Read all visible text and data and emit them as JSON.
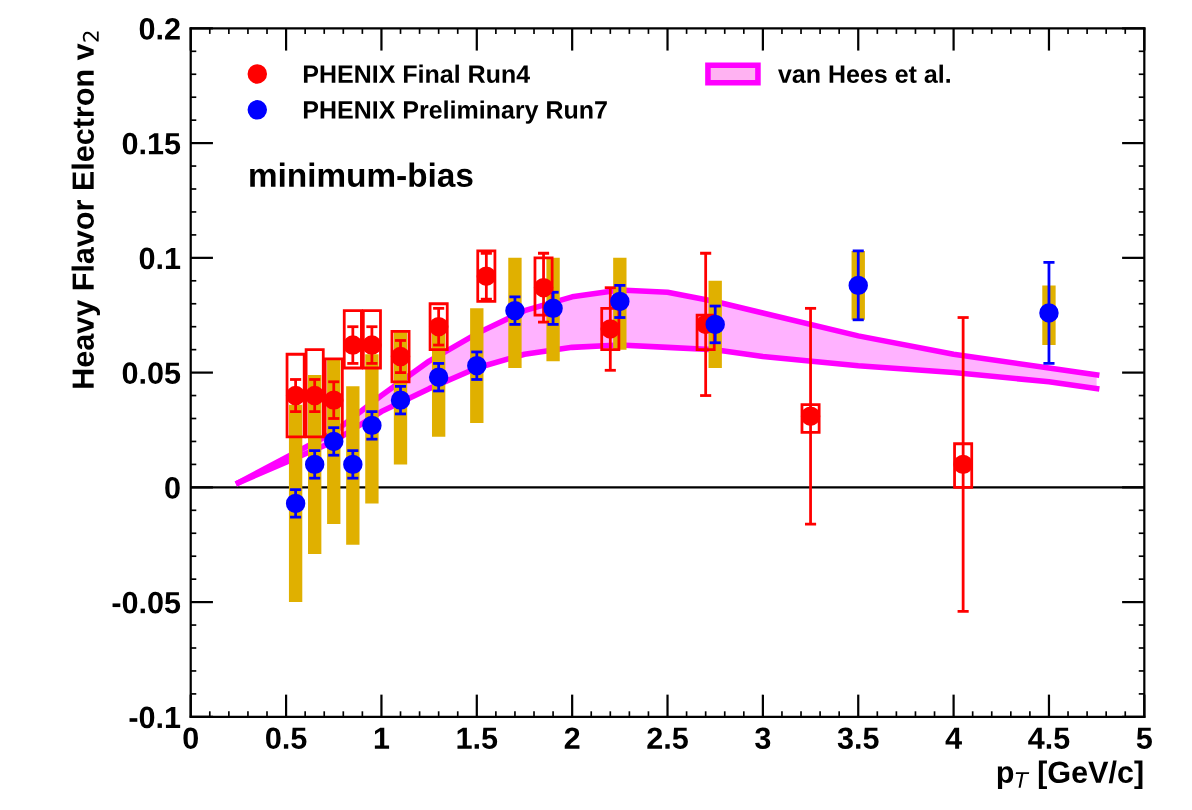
{
  "chart_data": {
    "type": "scatter",
    "xlabel": "p$_{T}$ [GeV/c]",
    "ylabel": "Heavy Flavor Electron v$_{2}$",
    "xlim": [
      0,
      5
    ],
    "ylim": [
      -0.1,
      0.2
    ],
    "xticks": [
      0,
      0.5,
      1,
      1.5,
      2,
      2.5,
      3,
      3.5,
      4,
      4.5,
      5
    ],
    "yticks": [
      {
        "value": -0.1,
        "label": "-0.1"
      },
      {
        "value": -0.05,
        "label": "-0.05"
      },
      0,
      0.05,
      0.1,
      0.15,
      0.2
    ],
    "grid": false,
    "legend": "top left",
    "annotations": [
      "minimum-bias"
    ],
    "ref_lines": [
      {
        "axis": "y",
        "value": 0,
        "color": "#000000"
      }
    ],
    "series": [
      {
        "type": "line",
        "color": "#ff00ff",
        "x": [
          0.25,
          0.5,
          0.75,
          1.0,
          1.25,
          1.5,
          1.75,
          2.0,
          2.25,
          2.5,
          2.75,
          3.0,
          3.5,
          4.0,
          4.5,
          4.75
        ],
        "values": [
          0.002,
          0.011,
          0.02,
          0.033,
          0.043,
          0.052,
          0.058,
          0.061,
          0.062,
          0.061,
          0.06,
          0.057,
          0.053,
          0.05,
          0.046,
          0.043
        ]
      },
      {
        "type": "area",
        "name": "van Hees et al.",
        "color": "#ff00ff",
        "x": [
          0.25,
          0.5,
          0.75,
          1.0,
          1.25,
          1.5,
          1.75,
          2.0,
          2.25,
          2.5,
          2.75,
          3.0,
          3.5,
          4.0,
          4.5,
          4.75
        ],
        "values": [
          0.002,
          0.013,
          0.024,
          0.04,
          0.055,
          0.067,
          0.077,
          0.083,
          0.086,
          0.085,
          0.081,
          0.076,
          0.066,
          0.058,
          0.052,
          0.049
        ]
      },
      {
        "type": "bar",
        "color": "#e0b000",
        "x": [
          0.55,
          0.65,
          0.75,
          0.85,
          0.95,
          1.1,
          1.3,
          1.5,
          1.7,
          1.9,
          2.25,
          2.75,
          3.5,
          4.5
        ],
        "base": [
          -0.05,
          -0.029,
          -0.016,
          -0.025,
          -0.007,
          0.01,
          0.022,
          0.028,
          0.052,
          0.055,
          0.06,
          0.052,
          0.073,
          0.062
        ],
        "values": [
          0.086,
          0.078,
          0.072,
          0.069,
          0.065,
          0.058,
          0.051,
          0.05,
          0.048,
          0.045,
          0.04,
          0.038,
          0.03,
          0.026
        ]
      },
      {
        "type": "bar",
        "line_style": "solid",
        "color": "#ff0000",
        "x": [
          0.55,
          0.65,
          0.75,
          0.85,
          0.95,
          1.1,
          1.3,
          1.55,
          1.85,
          2.2,
          2.7,
          3.25,
          4.05
        ],
        "base": [
          0.022,
          0.022,
          0.022,
          0.052,
          0.052,
          0.046,
          0.06,
          0.081,
          0.075,
          0.06,
          0.06,
          0.024,
          0.0
        ],
        "values": [
          0.036,
          0.038,
          0.034,
          0.025,
          0.025,
          0.022,
          0.02,
          0.022,
          0.025,
          0.018,
          0.015,
          0.012,
          0.019
        ]
      },
      {
        "name": "PHENIX Final Run4",
        "marker": "circle",
        "color": "#ff0000",
        "x": [
          0.55,
          0.65,
          0.75,
          0.85,
          0.95,
          1.1,
          1.3,
          1.55,
          1.85,
          2.2,
          2.7,
          3.25,
          4.05
        ],
        "values": [
          0.04,
          0.04,
          0.038,
          0.062,
          0.062,
          0.057,
          0.07,
          0.092,
          0.087,
          0.069,
          0.071,
          0.031,
          0.01
        ],
        "errors": [
          0.007,
          0.007,
          0.008,
          0.008,
          0.008,
          0.007,
          0.008,
          0.01,
          0.015,
          0.018,
          0.031,
          0.047,
          0.064
        ]
      },
      {
        "name": "PHENIX Preliminary Run7",
        "marker": "circle",
        "color": "#0000ff",
        "x": [
          0.55,
          0.65,
          0.75,
          0.85,
          0.95,
          1.1,
          1.3,
          1.5,
          1.7,
          1.9,
          2.25,
          2.75,
          3.5,
          4.5
        ],
        "values": [
          -0.007,
          0.01,
          0.02,
          0.01,
          0.027,
          0.038,
          0.048,
          0.053,
          0.077,
          0.078,
          0.081,
          0.071,
          0.088,
          0.076
        ],
        "errors": [
          0.006,
          0.006,
          0.006,
          0.006,
          0.006,
          0.006,
          0.006,
          0.006,
          0.006,
          0.007,
          0.007,
          0.008,
          0.015,
          0.022
        ]
      }
    ]
  }
}
